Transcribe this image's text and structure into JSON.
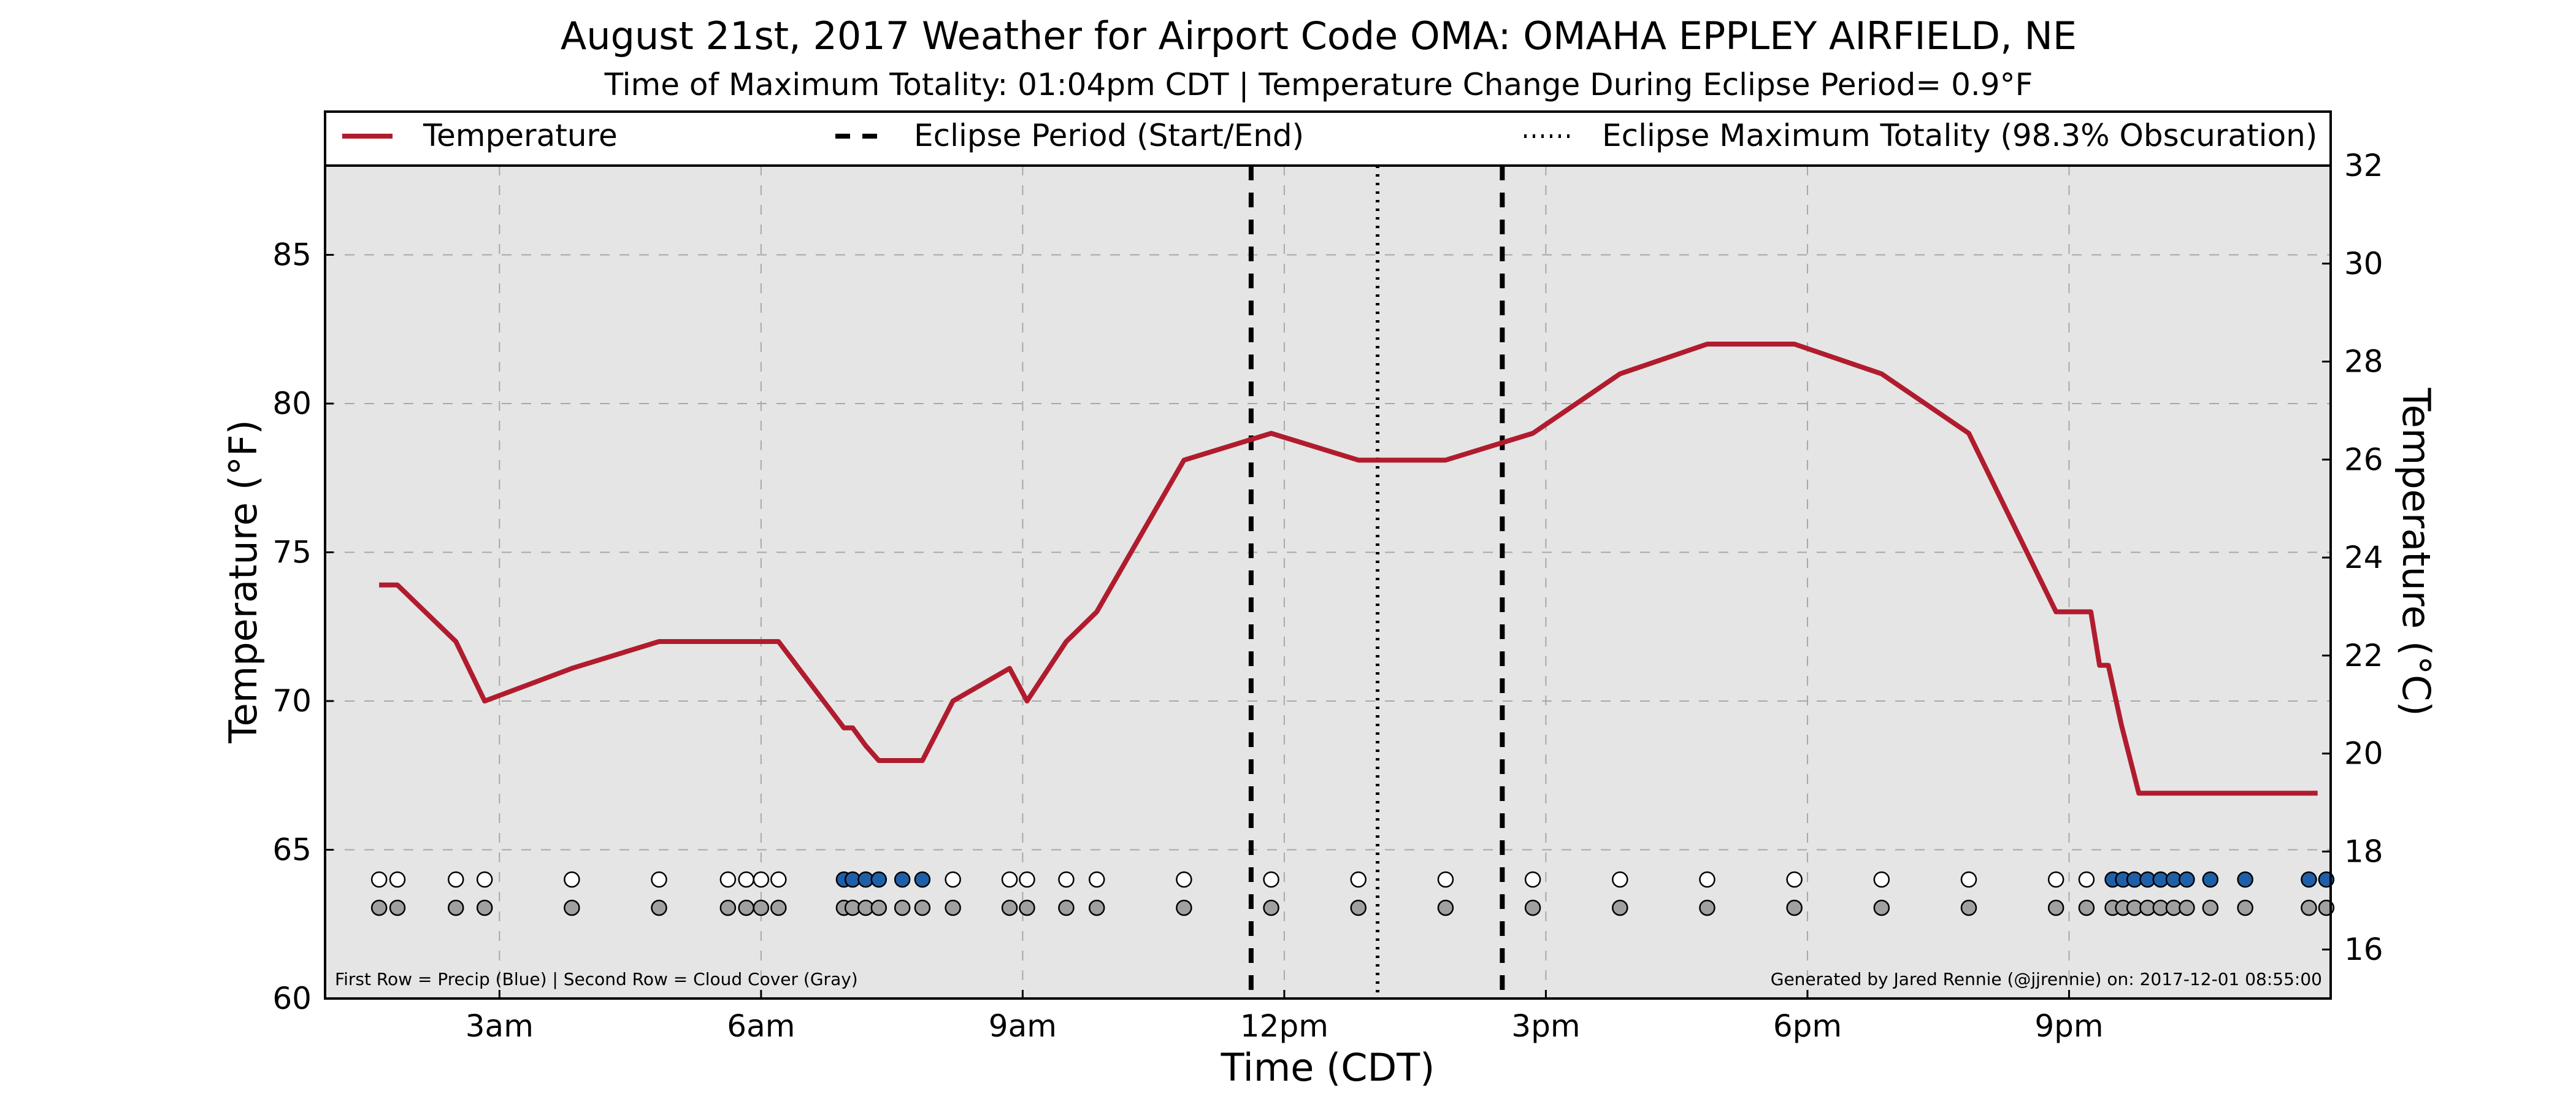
{
  "chart_data": {
    "type": "line",
    "title": "August 21st, 2017 Weather for Airport Code OMA: OMAHA EPPLEY AIRFIELD, NE",
    "subtitle": "Time of Maximum Totality: 01:04pm CDT | Temperature Change During Eclipse Period= 0.9°F",
    "xlabel": "Time (CDT)",
    "ylabel": "Temperature (°F)",
    "ylabel_right": "Temperature (°C)",
    "xlim": [
      1.0,
      24.0
    ],
    "ylim": [
      60,
      88
    ],
    "ylim_right": [
      15.0,
      32.0
    ],
    "x_ticks": [
      {
        "value": 3,
        "label": "3am"
      },
      {
        "value": 6,
        "label": "6am"
      },
      {
        "value": 9,
        "label": "9am"
      },
      {
        "value": 12,
        "label": "12pm"
      },
      {
        "value": 15,
        "label": "3pm"
      },
      {
        "value": 18,
        "label": "6pm"
      },
      {
        "value": 21,
        "label": "9pm"
      }
    ],
    "y_ticks": [
      60,
      65,
      70,
      75,
      80,
      85
    ],
    "y_ticks_right": [
      16,
      18,
      20,
      22,
      24,
      26,
      28,
      30,
      32
    ],
    "grid": true,
    "legend_position": "top",
    "colors": {
      "temperature": "#b01c2e",
      "precip": "#1f5fa8",
      "cloud": "#a0a0a0",
      "plot_bg": "#e5e5e5"
    },
    "legend": [
      {
        "label": "Temperature",
        "style": "solid"
      },
      {
        "label": "Eclipse Period (Start/End)",
        "style": "dashed"
      },
      {
        "label": "Eclipse Maximum Totality (98.3% Obscuration)",
        "style": "dotted"
      }
    ],
    "series": [
      {
        "name": "Temperature",
        "x": [
          1.62,
          1.83,
          2.5,
          2.83,
          3.83,
          4.83,
          5.83,
          6.2,
          6.95,
          7.05,
          7.2,
          7.35,
          7.85,
          8.2,
          8.85,
          9.05,
          9.5,
          9.85,
          10.85,
          11.85,
          12.85,
          13.85,
          14.85,
          15.85,
          16.85,
          17.85,
          18.85,
          19.85,
          20.85,
          21.25,
          21.35,
          21.45,
          21.6,
          21.8,
          23.0,
          23.85
        ],
        "y": [
          73.9,
          73.9,
          72.0,
          70.0,
          71.1,
          72.0,
          72.0,
          72.0,
          69.1,
          69.1,
          68.5,
          68.0,
          68.0,
          70.0,
          71.1,
          70.0,
          72.0,
          73.0,
          78.1,
          79.0,
          78.1,
          78.1,
          79.0,
          81.0,
          82.0,
          82.0,
          81.0,
          79.0,
          73.0,
          73.0,
          71.2,
          71.2,
          69.2,
          66.9,
          66.9,
          66.9
        ]
      }
    ],
    "eclipse": {
      "start": 11.62,
      "max": 13.07,
      "end": 14.5
    },
    "precip_row": {
      "x": [
        1.62,
        1.83,
        2.5,
        2.83,
        3.83,
        4.83,
        5.62,
        5.83,
        6.0,
        6.2,
        6.95,
        7.05,
        7.2,
        7.35,
        7.62,
        7.85,
        8.2,
        8.85,
        9.05,
        9.5,
        9.85,
        10.85,
        11.85,
        12.85,
        13.85,
        14.85,
        15.85,
        16.85,
        17.85,
        18.85,
        19.85,
        20.85,
        21.2,
        21.5,
        21.62,
        21.75,
        21.9,
        22.05,
        22.2,
        22.35,
        22.62,
        23.02,
        23.75,
        23.95
      ],
      "precip": [
        false,
        false,
        false,
        false,
        false,
        false,
        false,
        false,
        false,
        false,
        true,
        true,
        true,
        true,
        true,
        true,
        false,
        false,
        false,
        false,
        false,
        false,
        false,
        false,
        false,
        false,
        false,
        false,
        false,
        false,
        false,
        false,
        false,
        true,
        true,
        true,
        true,
        true,
        true,
        true,
        true,
        true,
        true,
        true
      ]
    },
    "cloud_row": {
      "x": [
        1.62,
        1.83,
        2.5,
        2.83,
        3.83,
        4.83,
        5.62,
        5.83,
        6.0,
        6.2,
        6.95,
        7.05,
        7.2,
        7.35,
        7.62,
        7.85,
        8.2,
        8.85,
        9.05,
        9.5,
        9.85,
        10.85,
        11.85,
        12.85,
        13.85,
        14.85,
        15.85,
        16.85,
        17.85,
        18.85,
        19.85,
        20.85,
        21.2,
        21.5,
        21.62,
        21.75,
        21.9,
        22.05,
        22.2,
        22.35,
        22.62,
        23.02,
        23.75,
        23.95
      ]
    },
    "annotation_left": "First Row = Precip (Blue) | Second Row = Cloud Cover (Gray)",
    "annotation_right": "Generated by Jared Rennie (@jjrennie) on: 2017-12-01 08:55:00"
  }
}
